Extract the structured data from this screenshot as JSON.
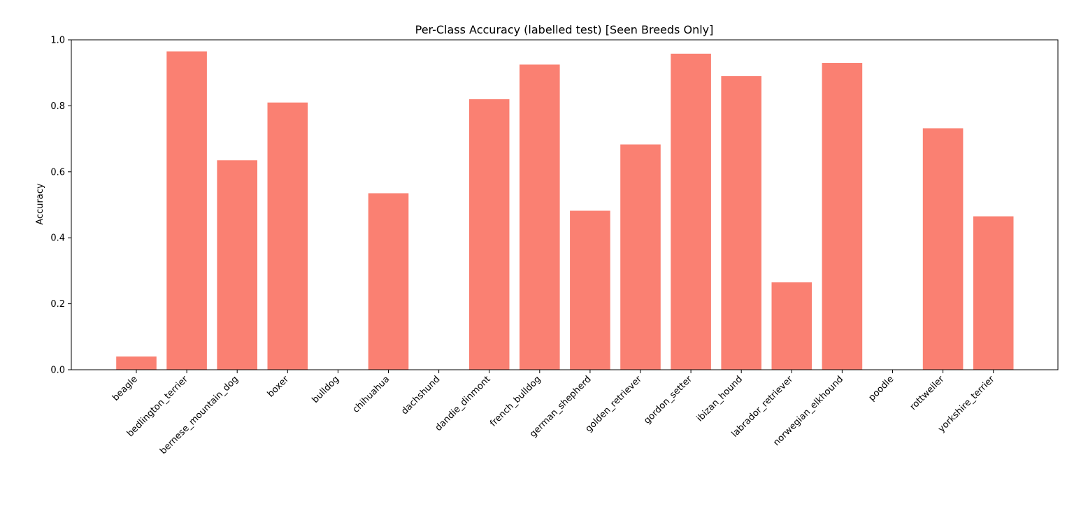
{
  "chart_data": {
    "type": "bar",
    "title": "Per-Class Accuracy (labelled test) [Seen Breeds Only]",
    "xlabel": "",
    "ylabel": "Accuracy",
    "ylim": [
      0,
      1.0
    ],
    "yticks": [
      "0.0",
      "0.2",
      "0.4",
      "0.6",
      "0.8",
      "1.0"
    ],
    "ytick_values": [
      0,
      0.2,
      0.4,
      0.6,
      0.8,
      1.0
    ],
    "grid": false,
    "bar_color": "#fa8072",
    "categories": [
      "beagle",
      "bedlington_terrier",
      "bernese_mountain_dog",
      "boxer",
      "bulldog",
      "chihuahua",
      "dachshund",
      "dandie_dinmont",
      "french_bulldog",
      "german_shepherd",
      "golden_retriever",
      "gordon_setter",
      "ibizan_hound",
      "labrador_retriever",
      "norwegian_elkhound",
      "poodle",
      "rottweiler",
      "yorkshire_terrier"
    ],
    "values": [
      0.04,
      0.965,
      0.635,
      0.81,
      0.0,
      0.535,
      0.0,
      0.82,
      0.925,
      0.482,
      0.683,
      0.958,
      0.89,
      0.265,
      0.93,
      0.0,
      0.732,
      0.465
    ]
  }
}
